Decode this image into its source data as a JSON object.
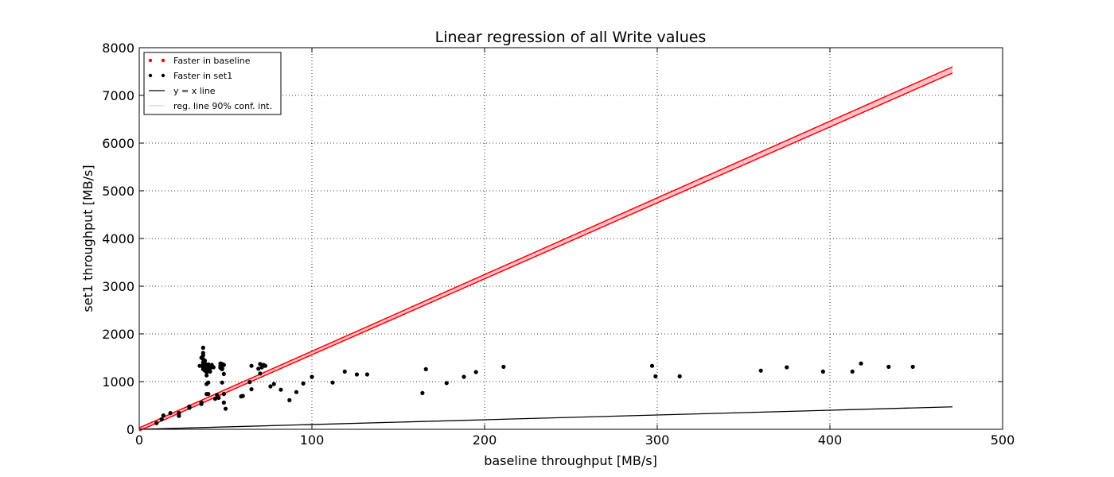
{
  "chart_data": {
    "type": "scatter",
    "title": "Linear regression of all Write values",
    "xlabel": "baseline throughput [MB/s]",
    "ylabel": "set1 throughput [MB/s]",
    "xlim": [
      0,
      500
    ],
    "ylim": [
      0,
      8000
    ],
    "xticks": [
      0,
      100,
      200,
      300,
      400,
      500
    ],
    "yticks": [
      0,
      1000,
      2000,
      3000,
      4000,
      5000,
      6000,
      7000,
      8000
    ],
    "grid": true,
    "legend_position": "top-left",
    "colors": {
      "faster_baseline": "#ff0000",
      "faster_set1": "#000000",
      "yx_line": "#000000",
      "regression": "#ff0000",
      "conf_band": "#ffc0cb"
    },
    "legend": [
      {
        "key": "faster_baseline",
        "label": "Faster in baseline",
        "kind": "points"
      },
      {
        "key": "faster_set1",
        "label": "Faster in set1",
        "kind": "points"
      },
      {
        "key": "yx_line",
        "label": "y = x line",
        "kind": "line"
      },
      {
        "key": "conf_band",
        "label": "reg. line 90% conf. int.",
        "kind": "line"
      }
    ],
    "series": [
      {
        "name": "Faster in baseline",
        "key": "faster_baseline",
        "points": []
      },
      {
        "name": "Faster in set1",
        "key": "faster_set1",
        "points": [
          [
            10,
            130
          ],
          [
            13,
            210
          ],
          [
            14,
            290
          ],
          [
            18,
            340
          ],
          [
            23,
            280
          ],
          [
            23,
            340
          ],
          [
            29,
            480
          ],
          [
            29,
            450
          ],
          [
            35,
            1330
          ],
          [
            36,
            1500
          ],
          [
            36,
            560
          ],
          [
            36,
            530
          ],
          [
            37,
            1710
          ],
          [
            37,
            1600
          ],
          [
            37,
            1550
          ],
          [
            37,
            1470
          ],
          [
            37,
            1400
          ],
          [
            37,
            1350
          ],
          [
            37,
            1300
          ],
          [
            37,
            1260
          ],
          [
            38,
            1230
          ],
          [
            38,
            1280
          ],
          [
            38,
            1330
          ],
          [
            38,
            1380
          ],
          [
            38,
            1440
          ],
          [
            39,
            1250
          ],
          [
            39,
            1200
          ],
          [
            39,
            1130
          ],
          [
            39,
            950
          ],
          [
            39,
            740
          ],
          [
            40,
            1360
          ],
          [
            40,
            1300
          ],
          [
            40,
            1250
          ],
          [
            40,
            740
          ],
          [
            40,
            980
          ],
          [
            41,
            1330
          ],
          [
            41,
            1280
          ],
          [
            41,
            1210
          ],
          [
            42,
            1350
          ],
          [
            43,
            1300
          ],
          [
            44,
            640
          ],
          [
            45,
            720
          ],
          [
            46,
            660
          ],
          [
            47,
            1330
          ],
          [
            47,
            1290
          ],
          [
            47,
            1380
          ],
          [
            48,
            1370
          ],
          [
            48,
            1280
          ],
          [
            48,
            1260
          ],
          [
            48,
            980
          ],
          [
            49,
            1350
          ],
          [
            49,
            1160
          ],
          [
            49,
            740
          ],
          [
            49,
            560
          ],
          [
            50,
            430
          ],
          [
            59,
            690
          ],
          [
            60,
            700
          ],
          [
            64,
            990
          ],
          [
            65,
            1330
          ],
          [
            65,
            840
          ],
          [
            69,
            1270
          ],
          [
            70,
            1370
          ],
          [
            70,
            1170
          ],
          [
            71,
            1300
          ],
          [
            72,
            1350
          ],
          [
            73,
            1330
          ],
          [
            76,
            900
          ],
          [
            78,
            950
          ],
          [
            82,
            830
          ],
          [
            87,
            610
          ],
          [
            91,
            780
          ],
          [
            95,
            960
          ],
          [
            100,
            1100
          ],
          [
            112,
            980
          ],
          [
            119,
            1210
          ],
          [
            126,
            1150
          ],
          [
            132,
            1150
          ],
          [
            164,
            760
          ],
          [
            166,
            1260
          ],
          [
            178,
            970
          ],
          [
            188,
            1100
          ],
          [
            195,
            1200
          ],
          [
            211,
            1310
          ],
          [
            297,
            1330
          ],
          [
            299,
            1110
          ],
          [
            313,
            1110
          ],
          [
            360,
            1230
          ],
          [
            375,
            1300
          ],
          [
            396,
            1210
          ],
          [
            413,
            1210
          ],
          [
            418,
            1380
          ],
          [
            434,
            1310
          ],
          [
            448,
            1310
          ]
        ]
      }
    ],
    "yx_line": {
      "x": [
        0,
        471
      ],
      "y": [
        0,
        471
      ]
    },
    "regression": {
      "x": [
        0,
        471
      ],
      "lower": [
        -30,
        7470
      ],
      "upper": [
        30,
        7600
      ],
      "center": [
        0,
        7535
      ]
    }
  }
}
